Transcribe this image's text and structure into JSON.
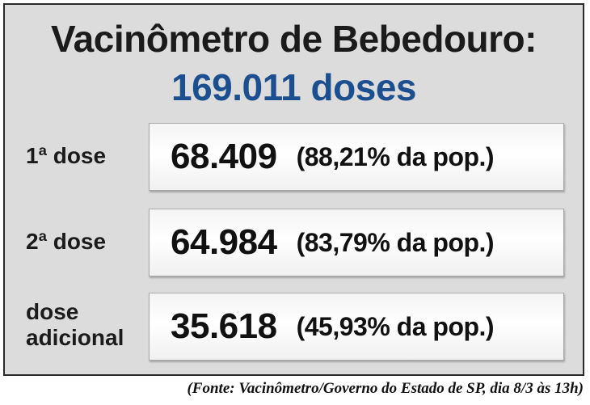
{
  "header": {
    "title": "Vacinômetro de Bebedouro:",
    "total": "169.011 doses"
  },
  "rows": [
    {
      "label": "1ª dose",
      "number": "68.409",
      "percent": "(88,21% da pop.)"
    },
    {
      "label": "2ª dose",
      "number": "64.984",
      "percent": "(83,79% da pop.)"
    },
    {
      "label_line1": "dose",
      "label_line2": "adicional",
      "number": "35.618",
      "percent": "(45,93% da pop.)"
    }
  ],
  "footer": {
    "source": "(Fonte: Vacinômetro/Governo do Estado de SP, dia 8/3 às 13h)"
  },
  "colors": {
    "total_text": "#1c4f8f",
    "panel_background": "#dcdcdc",
    "border": "#2a2a2a"
  }
}
